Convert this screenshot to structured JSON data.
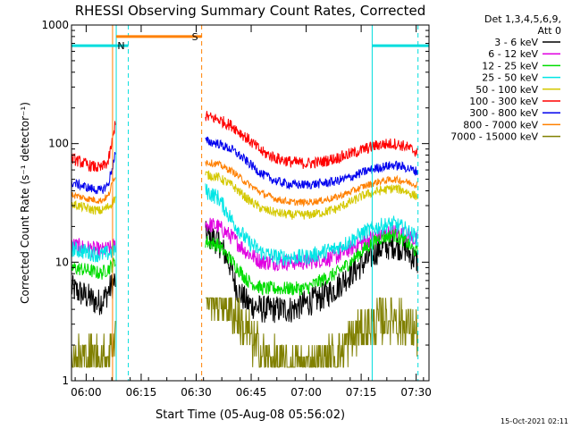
{
  "chart_data": {
    "type": "line",
    "title": "RHESSI Observing Summary Count Rates, Corrected",
    "xlabel": "Start Time (05-Aug-08 05:56:02)",
    "ylabel": "Corrected Count Rate (s⁻¹ detector⁻¹)",
    "x_start_minutes": 0,
    "x_end_minutes": 97.5,
    "ylim": [
      1,
      1000
    ],
    "yscale": "log",
    "x_ticks": [
      {
        "min": 4,
        "label": "06:00"
      },
      {
        "min": 19,
        "label": "06:15"
      },
      {
        "min": 34,
        "label": "06:30"
      },
      {
        "min": 49,
        "label": "06:45"
      },
      {
        "min": 64,
        "label": "07:00"
      },
      {
        "min": 79,
        "label": "07:15"
      },
      {
        "min": 94,
        "label": "07:30"
      }
    ],
    "y_ticks": [
      {
        "v": 1,
        "label": "1"
      },
      {
        "v": 10,
        "label": "10"
      },
      {
        "v": 100,
        "label": "100"
      },
      {
        "v": 1000,
        "label": "1000"
      }
    ],
    "legend_header": [
      "Det 1,3,4,5,6,9,",
      "Att 0"
    ],
    "legend_position": "top-right",
    "timestamp": "15-Oct-2021 02:11",
    "gaps": [
      [
        12,
        36.5
      ]
    ],
    "series": [
      {
        "name": "3 - 6 keV",
        "color": "#000000",
        "noise": 0.12,
        "points": [
          [
            0,
            6
          ],
          [
            5,
            5
          ],
          [
            7,
            4.5
          ],
          [
            9,
            5
          ],
          [
            10.5,
            6
          ],
          [
            12,
            7
          ],
          [
            36.5,
            17
          ],
          [
            40,
            15
          ],
          [
            43,
            10
          ],
          [
            45,
            6
          ],
          [
            48,
            4.5
          ],
          [
            52,
            4
          ],
          [
            56,
            4
          ],
          [
            60,
            4
          ],
          [
            64,
            4.5
          ],
          [
            68,
            5
          ],
          [
            72,
            6
          ],
          [
            76,
            8
          ],
          [
            80,
            10
          ],
          [
            84,
            13
          ],
          [
            88,
            14
          ],
          [
            91,
            13
          ],
          [
            93,
            11
          ],
          [
            94.5,
            10
          ]
        ]
      },
      {
        "name": "6 - 12 keV",
        "color": "#e000e0",
        "noise": 0.07,
        "points": [
          [
            0,
            14
          ],
          [
            5,
            13
          ],
          [
            8,
            12.5
          ],
          [
            10.5,
            13
          ],
          [
            12,
            14
          ],
          [
            36.5,
            21
          ],
          [
            40,
            20
          ],
          [
            44,
            16
          ],
          [
            48,
            12
          ],
          [
            52,
            10
          ],
          [
            56,
            10
          ],
          [
            60,
            10
          ],
          [
            64,
            10
          ],
          [
            68,
            10.5
          ],
          [
            72,
            11
          ],
          [
            76,
            13
          ],
          [
            80,
            15
          ],
          [
            84,
            17
          ],
          [
            88,
            18
          ],
          [
            91,
            17
          ],
          [
            93,
            16
          ],
          [
            94.5,
            15
          ]
        ]
      },
      {
        "name": "12 - 25 keV",
        "color": "#00dd00",
        "noise": 0.06,
        "points": [
          [
            0,
            9
          ],
          [
            5,
            8.5
          ],
          [
            8,
            8
          ],
          [
            10.5,
            9
          ],
          [
            12,
            10
          ],
          [
            36.5,
            15
          ],
          [
            40,
            14
          ],
          [
            44,
            10
          ],
          [
            48,
            7
          ],
          [
            52,
            6
          ],
          [
            56,
            6
          ],
          [
            60,
            6
          ],
          [
            64,
            6
          ],
          [
            68,
            7
          ],
          [
            72,
            8
          ],
          [
            76,
            10
          ],
          [
            80,
            13
          ],
          [
            84,
            16
          ],
          [
            88,
            17
          ],
          [
            91,
            15
          ],
          [
            93,
            13
          ],
          [
            94.5,
            12
          ]
        ]
      },
      {
        "name": "25 - 50 keV",
        "color": "#00e5e5",
        "noise": 0.07,
        "points": [
          [
            0,
            13
          ],
          [
            5,
            12
          ],
          [
            8,
            11.5
          ],
          [
            10.5,
            12
          ],
          [
            12,
            13
          ],
          [
            36.5,
            40
          ],
          [
            40,
            35
          ],
          [
            44,
            22
          ],
          [
            48,
            15
          ],
          [
            52,
            12
          ],
          [
            56,
            11
          ],
          [
            60,
            11
          ],
          [
            64,
            11
          ],
          [
            68,
            12
          ],
          [
            72,
            13
          ],
          [
            76,
            15
          ],
          [
            80,
            18
          ],
          [
            84,
            20
          ],
          [
            88,
            21
          ],
          [
            91,
            19
          ],
          [
            93,
            17
          ],
          [
            94.5,
            16
          ]
        ]
      },
      {
        "name": "50 - 100 keV",
        "color": "#d4c800",
        "noise": 0.04,
        "points": [
          [
            0,
            31
          ],
          [
            5,
            28
          ],
          [
            8,
            27
          ],
          [
            10.5,
            30
          ],
          [
            12,
            35
          ],
          [
            36.5,
            55
          ],
          [
            40,
            52
          ],
          [
            44,
            44
          ],
          [
            48,
            34
          ],
          [
            52,
            28
          ],
          [
            56,
            26
          ],
          [
            60,
            25
          ],
          [
            64,
            25
          ],
          [
            68,
            26
          ],
          [
            72,
            28
          ],
          [
            76,
            32
          ],
          [
            80,
            37
          ],
          [
            84,
            40
          ],
          [
            88,
            42
          ],
          [
            91,
            40
          ],
          [
            93,
            37
          ],
          [
            94.5,
            36
          ]
        ]
      },
      {
        "name": "100 - 300 keV",
        "color": "#ff0000",
        "noise": 0.05,
        "points": [
          [
            0,
            75
          ],
          [
            5,
            65
          ],
          [
            8,
            62
          ],
          [
            10,
            70
          ],
          [
            11.5,
            120
          ],
          [
            12,
            160
          ],
          [
            36.5,
            170
          ],
          [
            40,
            160
          ],
          [
            44,
            140
          ],
          [
            48,
            110
          ],
          [
            52,
            85
          ],
          [
            56,
            75
          ],
          [
            60,
            70
          ],
          [
            64,
            68
          ],
          [
            68,
            70
          ],
          [
            72,
            75
          ],
          [
            76,
            82
          ],
          [
            80,
            90
          ],
          [
            84,
            98
          ],
          [
            88,
            100
          ],
          [
            91,
            95
          ],
          [
            93,
            88
          ],
          [
            94.5,
            85
          ]
        ]
      },
      {
        "name": "300 - 800 keV",
        "color": "#0000ee",
        "noise": 0.04,
        "points": [
          [
            0,
            47
          ],
          [
            5,
            42
          ],
          [
            8,
            40
          ],
          [
            10,
            45
          ],
          [
            11.5,
            70
          ],
          [
            12,
            85
          ],
          [
            36.5,
            105
          ],
          [
            40,
            100
          ],
          [
            44,
            88
          ],
          [
            48,
            70
          ],
          [
            52,
            55
          ],
          [
            56,
            48
          ],
          [
            60,
            45
          ],
          [
            64,
            45
          ],
          [
            68,
            46
          ],
          [
            72,
            48
          ],
          [
            76,
            52
          ],
          [
            80,
            58
          ],
          [
            84,
            63
          ],
          [
            88,
            66
          ],
          [
            91,
            63
          ],
          [
            93,
            60
          ],
          [
            94.5,
            58
          ]
        ]
      },
      {
        "name": "800 - 7000 keV",
        "color": "#ff8000",
        "noise": 0.03,
        "points": [
          [
            0,
            37
          ],
          [
            5,
            34
          ],
          [
            8,
            33
          ],
          [
            10,
            36
          ],
          [
            11.5,
            50
          ],
          [
            12,
            55
          ],
          [
            36.5,
            70
          ],
          [
            40,
            67
          ],
          [
            44,
            58
          ],
          [
            48,
            46
          ],
          [
            52,
            38
          ],
          [
            56,
            34
          ],
          [
            60,
            32
          ],
          [
            64,
            32
          ],
          [
            68,
            33
          ],
          [
            72,
            35
          ],
          [
            76,
            39
          ],
          [
            80,
            44
          ],
          [
            84,
            48
          ],
          [
            88,
            50
          ],
          [
            91,
            48
          ],
          [
            93,
            46
          ],
          [
            94.5,
            45
          ]
        ]
      },
      {
        "name": "7000 - 15000 keV",
        "color": "#808000",
        "noise": 0.2,
        "step": true,
        "points": [
          [
            0,
            1.6
          ],
          [
            3,
            1.5
          ],
          [
            6,
            1.6
          ],
          [
            9,
            1.5
          ],
          [
            11,
            2
          ],
          [
            12,
            2.5
          ],
          [
            36.5,
            5.5
          ],
          [
            40,
            5
          ],
          [
            44,
            4
          ],
          [
            48,
            2.5
          ],
          [
            52,
            1.6
          ],
          [
            56,
            1.4
          ],
          [
            60,
            1.3
          ],
          [
            64,
            1.3
          ],
          [
            68,
            1.4
          ],
          [
            72,
            1.6
          ],
          [
            76,
            2.2
          ],
          [
            80,
            2.8
          ],
          [
            84,
            3.2
          ],
          [
            88,
            3.5
          ],
          [
            91,
            3
          ],
          [
            93,
            2.7
          ],
          [
            94.5,
            2.5
          ]
        ]
      }
    ],
    "vlines": [
      {
        "min": 11.2,
        "color": "#ff8000",
        "style": "solid"
      },
      {
        "min": 12.2,
        "color": "#00dddd",
        "style": "solid"
      },
      {
        "min": 15.5,
        "color": "#00dddd",
        "style": "dashed"
      },
      {
        "min": 35.5,
        "color": "#ff8000",
        "style": "dashed"
      },
      {
        "min": 82,
        "color": "#00dddd",
        "style": "solid"
      },
      {
        "min": 94.5,
        "color": "#00dddd",
        "style": "dashed"
      }
    ],
    "bars": [
      {
        "label": "S",
        "color": "#ff8000",
        "from": 12.2,
        "to": 35.5,
        "value": 800
      },
      {
        "label": "N",
        "color": "#00dddd",
        "from": 0,
        "to": 15.5,
        "value": 670
      },
      {
        "label": "",
        "color": "#00dddd",
        "from": 82,
        "to": 97.5,
        "value": 670
      }
    ]
  }
}
